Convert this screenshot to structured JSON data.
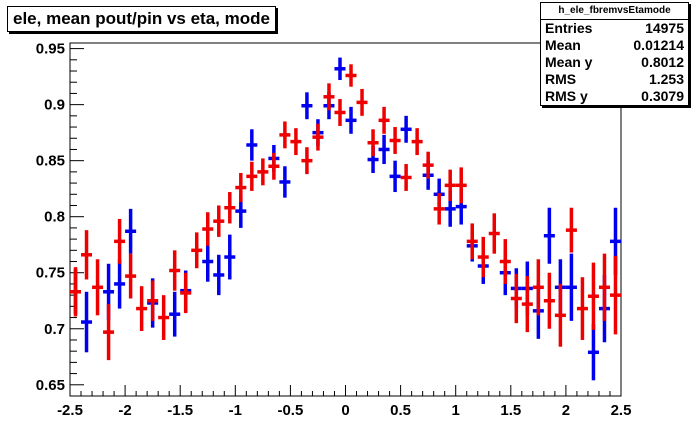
{
  "title": "ele, mean pout/pin vs eta, mode",
  "stats": {
    "name": "h_ele_fbremvsEtamode",
    "rows": [
      {
        "label": "Entries",
        "value": "14975"
      },
      {
        "label": "Mean",
        "value": "0.01214"
      },
      {
        "label": "Mean y",
        "value": "0.8012"
      },
      {
        "label": "RMS",
        "value": "1.253"
      },
      {
        "label": "RMS y",
        "value": "0.3079"
      }
    ]
  },
  "colors": {
    "series_blue": "#0000ee",
    "series_red": "#ee0000",
    "axis": "#000000"
  },
  "chart_data": {
    "type": "scatter",
    "title": "ele, mean pout/pin vs eta, mode",
    "xlabel": "",
    "ylabel": "",
    "xlim": [
      -2.5,
      2.5
    ],
    "ylim": [
      0.64,
      0.955
    ],
    "x_ticks": [
      -2.5,
      -2,
      -1.5,
      -1,
      -0.5,
      0,
      0.5,
      1,
      1.5,
      2,
      2.5
    ],
    "x_tick_labels": [
      "-2.5",
      "-2",
      "-1.5",
      "-1",
      "-0.5",
      "0",
      "0.5",
      "1",
      "1.5",
      "2",
      "2.5"
    ],
    "y_ticks": [
      0.65,
      0.7,
      0.75,
      0.8,
      0.85,
      0.9,
      0.95
    ],
    "y_tick_labels": [
      "0.65",
      "0.7",
      "0.75",
      "0.8",
      "0.85",
      "0.9",
      "0.95"
    ],
    "grid": false,
    "series": [
      {
        "color": "#0000ee",
        "half_width": 0.05,
        "points": [
          {
            "x": -2.45,
            "y": 0.733,
            "err": 0.02
          },
          {
            "x": -2.35,
            "y": 0.706,
            "err": 0.027
          },
          {
            "x": -2.15,
            "y": 0.733,
            "err": 0.025
          },
          {
            "x": -2.05,
            "y": 0.74,
            "err": 0.022
          },
          {
            "x": -1.95,
            "y": 0.787,
            "err": 0.02
          },
          {
            "x": -1.75,
            "y": 0.723,
            "err": 0.022
          },
          {
            "x": -1.55,
            "y": 0.713,
            "err": 0.02
          },
          {
            "x": -1.45,
            "y": 0.734,
            "err": 0.018
          },
          {
            "x": -1.25,
            "y": 0.76,
            "err": 0.018
          },
          {
            "x": -1.15,
            "y": 0.748,
            "err": 0.018
          },
          {
            "x": -1.05,
            "y": 0.764,
            "err": 0.02
          },
          {
            "x": -0.95,
            "y": 0.805,
            "err": 0.015
          },
          {
            "x": -0.85,
            "y": 0.864,
            "err": 0.014
          },
          {
            "x": -0.65,
            "y": 0.852,
            "err": 0.012
          },
          {
            "x": -0.55,
            "y": 0.831,
            "err": 0.014
          },
          {
            "x": -0.35,
            "y": 0.899,
            "err": 0.012
          },
          {
            "x": -0.25,
            "y": 0.875,
            "err": 0.012
          },
          {
            "x": -0.15,
            "y": 0.899,
            "err": 0.012
          },
          {
            "x": -0.05,
            "y": 0.932,
            "err": 0.01
          },
          {
            "x": 0.05,
            "y": 0.886,
            "err": 0.012
          },
          {
            "x": 0.25,
            "y": 0.851,
            "err": 0.012
          },
          {
            "x": 0.35,
            "y": 0.86,
            "err": 0.013
          },
          {
            "x": 0.45,
            "y": 0.836,
            "err": 0.014
          },
          {
            "x": 0.55,
            "y": 0.878,
            "err": 0.012
          },
          {
            "x": 0.75,
            "y": 0.837,
            "err": 0.013
          },
          {
            "x": 0.85,
            "y": 0.82,
            "err": 0.014
          },
          {
            "x": 0.95,
            "y": 0.807,
            "err": 0.016
          },
          {
            "x": 1.05,
            "y": 0.809,
            "err": 0.016
          },
          {
            "x": 1.15,
            "y": 0.774,
            "err": 0.014
          },
          {
            "x": 1.25,
            "y": 0.756,
            "err": 0.016
          },
          {
            "x": 1.45,
            "y": 0.75,
            "err": 0.02
          },
          {
            "x": 1.55,
            "y": 0.736,
            "err": 0.018
          },
          {
            "x": 1.65,
            "y": 0.736,
            "err": 0.024
          },
          {
            "x": 1.75,
            "y": 0.716,
            "err": 0.025
          },
          {
            "x": 1.85,
            "y": 0.783,
            "err": 0.025
          },
          {
            "x": 1.95,
            "y": 0.737,
            "err": 0.025
          },
          {
            "x": 2.05,
            "y": 0.737,
            "err": 0.03
          },
          {
            "x": 2.25,
            "y": 0.679,
            "err": 0.025
          },
          {
            "x": 2.35,
            "y": 0.718,
            "err": 0.03
          },
          {
            "x": 2.45,
            "y": 0.778,
            "err": 0.03
          }
        ]
      },
      {
        "color": "#ee0000",
        "half_width": 0.05,
        "points": [
          {
            "x": -2.45,
            "y": 0.733,
            "err": 0.022
          },
          {
            "x": -2.35,
            "y": 0.766,
            "err": 0.022
          },
          {
            "x": -2.25,
            "y": 0.737,
            "err": 0.025
          },
          {
            "x": -2.15,
            "y": 0.697,
            "err": 0.025
          },
          {
            "x": -2.05,
            "y": 0.778,
            "err": 0.02
          },
          {
            "x": -1.95,
            "y": 0.747,
            "err": 0.02
          },
          {
            "x": -1.85,
            "y": 0.718,
            "err": 0.02
          },
          {
            "x": -1.75,
            "y": 0.725,
            "err": 0.018
          },
          {
            "x": -1.65,
            "y": 0.71,
            "err": 0.02
          },
          {
            "x": -1.55,
            "y": 0.752,
            "err": 0.018
          },
          {
            "x": -1.45,
            "y": 0.732,
            "err": 0.018
          },
          {
            "x": -1.35,
            "y": 0.77,
            "err": 0.016
          },
          {
            "x": -1.25,
            "y": 0.789,
            "err": 0.015
          },
          {
            "x": -1.15,
            "y": 0.796,
            "err": 0.014
          },
          {
            "x": -1.05,
            "y": 0.808,
            "err": 0.014
          },
          {
            "x": -0.95,
            "y": 0.826,
            "err": 0.013
          },
          {
            "x": -0.85,
            "y": 0.836,
            "err": 0.013
          },
          {
            "x": -0.75,
            "y": 0.84,
            "err": 0.012
          },
          {
            "x": -0.65,
            "y": 0.845,
            "err": 0.012
          },
          {
            "x": -0.55,
            "y": 0.873,
            "err": 0.012
          },
          {
            "x": -0.45,
            "y": 0.867,
            "err": 0.012
          },
          {
            "x": -0.35,
            "y": 0.85,
            "err": 0.012
          },
          {
            "x": -0.25,
            "y": 0.871,
            "err": 0.012
          },
          {
            "x": -0.15,
            "y": 0.907,
            "err": 0.012
          },
          {
            "x": -0.05,
            "y": 0.893,
            "err": 0.012
          },
          {
            "x": 0.05,
            "y": 0.926,
            "err": 0.01
          },
          {
            "x": 0.15,
            "y": 0.902,
            "err": 0.012
          },
          {
            "x": 0.25,
            "y": 0.866,
            "err": 0.012
          },
          {
            "x": 0.35,
            "y": 0.886,
            "err": 0.012
          },
          {
            "x": 0.45,
            "y": 0.868,
            "err": 0.012
          },
          {
            "x": 0.55,
            "y": 0.835,
            "err": 0.012
          },
          {
            "x": 0.65,
            "y": 0.867,
            "err": 0.012
          },
          {
            "x": 0.75,
            "y": 0.846,
            "err": 0.012
          },
          {
            "x": 0.85,
            "y": 0.807,
            "err": 0.014
          },
          {
            "x": 0.95,
            "y": 0.828,
            "err": 0.014
          },
          {
            "x": 1.05,
            "y": 0.828,
            "err": 0.016
          },
          {
            "x": 1.15,
            "y": 0.778,
            "err": 0.016
          },
          {
            "x": 1.25,
            "y": 0.764,
            "err": 0.018
          },
          {
            "x": 1.35,
            "y": 0.785,
            "err": 0.018
          },
          {
            "x": 1.45,
            "y": 0.76,
            "err": 0.02
          },
          {
            "x": 1.55,
            "y": 0.727,
            "err": 0.022
          },
          {
            "x": 1.65,
            "y": 0.722,
            "err": 0.025
          },
          {
            "x": 1.75,
            "y": 0.737,
            "err": 0.025
          },
          {
            "x": 1.85,
            "y": 0.725,
            "err": 0.025
          },
          {
            "x": 1.95,
            "y": 0.712,
            "err": 0.028
          },
          {
            "x": 2.05,
            "y": 0.788,
            "err": 0.02
          },
          {
            "x": 2.15,
            "y": 0.718,
            "err": 0.028
          },
          {
            "x": 2.25,
            "y": 0.729,
            "err": 0.03
          },
          {
            "x": 2.35,
            "y": 0.737,
            "err": 0.03
          },
          {
            "x": 2.45,
            "y": 0.73,
            "err": 0.035
          }
        ]
      }
    ]
  }
}
